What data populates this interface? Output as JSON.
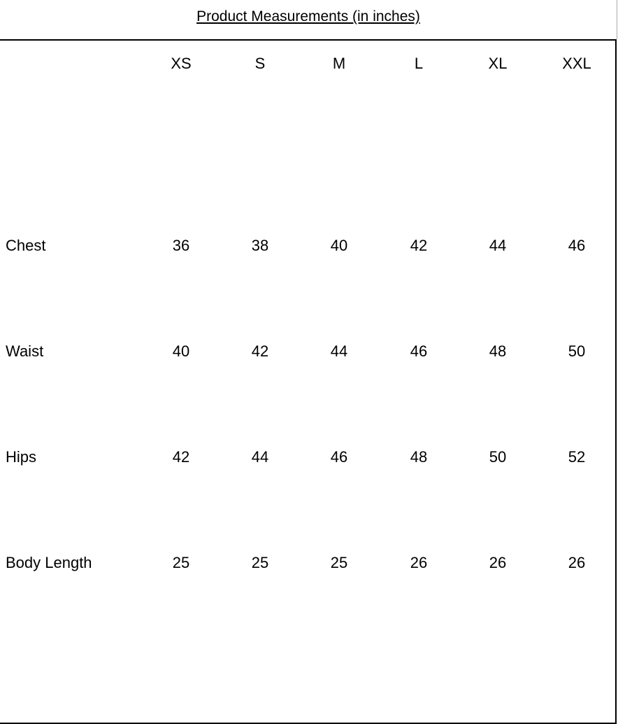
{
  "title": "Product Measurements  (in inches)",
  "sizes": [
    "XS",
    "S",
    "M",
    "L",
    "XL",
    "XXL"
  ],
  "rows": [
    {
      "label": "Chest",
      "values": [
        "36",
        "38",
        "40",
        "42",
        "44",
        "46"
      ]
    },
    {
      "label": "Waist",
      "values": [
        "40",
        "42",
        "44",
        "46",
        "48",
        "50"
      ]
    },
    {
      "label": "Hips",
      "values": [
        "42",
        "44",
        "46",
        "48",
        "50",
        "52"
      ]
    },
    {
      "label": "Body Length",
      "values": [
        "25",
        "25",
        "25",
        "26",
        "26",
        "26"
      ]
    }
  ]
}
